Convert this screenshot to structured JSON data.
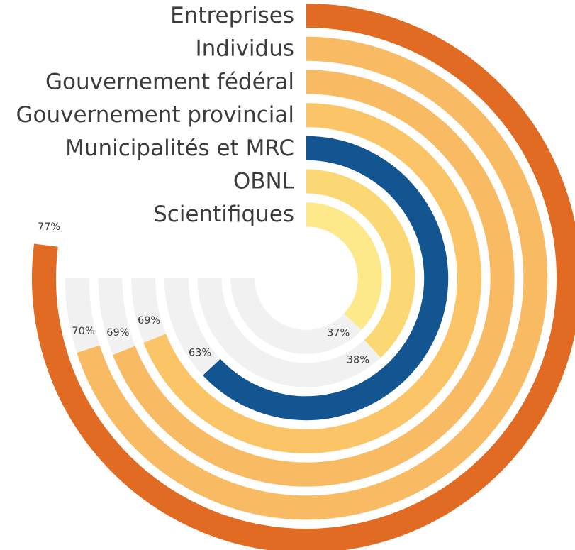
{
  "chart_data": {
    "type": "radial-bar",
    "max_value": 100,
    "track_color": "#f1f1f1",
    "series": [
      {
        "label": "Entreprises",
        "value": 77,
        "value_label": "77%",
        "color": "#e26b23"
      },
      {
        "label": "Individus",
        "value": 70,
        "value_label": "70%",
        "color": "#f8bb63"
      },
      {
        "label": "Gouvernement fédéral",
        "value": 69,
        "value_label": "69%",
        "color": "#f8bb63"
      },
      {
        "label": "Gouvernement provincial",
        "value": 69,
        "value_label": "69%",
        "color": "#fbc466"
      },
      {
        "label": "Municipalités et MRC",
        "value": 63,
        "value_label": "63%",
        "color": "#135591"
      },
      {
        "label": "OBNL",
        "value": 38,
        "value_label": "38%",
        "color": "#fbd874"
      },
      {
        "label": "Scientifiques",
        "value": 37,
        "value_label": "37%",
        "color": "#fde98a"
      }
    ]
  }
}
